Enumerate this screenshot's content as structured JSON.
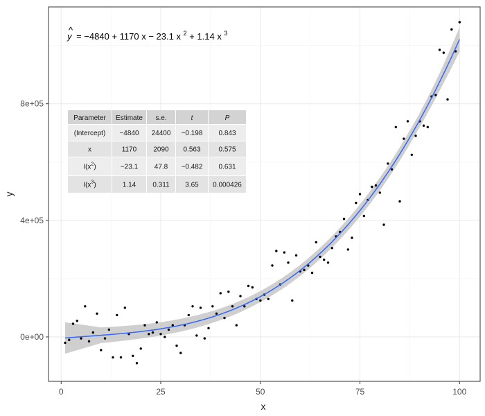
{
  "chart_data": {
    "type": "scatter",
    "title": "",
    "xlabel": "x",
    "ylabel": "y",
    "xlim": [
      -3,
      105
    ],
    "ylim": [
      -150000,
      1130000
    ],
    "x_ticks": [
      0,
      25,
      50,
      75,
      100
    ],
    "x_tick_labels": [
      "0",
      "25",
      "50",
      "75",
      "100"
    ],
    "y_ticks": [
      0,
      400000,
      800000
    ],
    "y_tick_labels": [
      "0e+00",
      "4e+05",
      "8e+05"
    ],
    "grid": true,
    "colors": {
      "points": "#000000",
      "fit_line": "#3366FF",
      "ribbon": "#bfbfbf",
      "grid": "#ebebeb",
      "panel_border": "#333333"
    },
    "equation": {
      "lhs": "y",
      "terms": "= −4840 + 1170 x − 23.1 x",
      "sq": "2",
      "mid": " + 1.14 x",
      "cube": "3"
    },
    "fit": {
      "method": "polynomial",
      "coefficients": [
        -4840,
        1170,
        -23.1,
        1.14
      ],
      "se_band": [
        {
          "x": 1,
          "half": 54000
        },
        {
          "x": 10,
          "half": 27000
        },
        {
          "x": 20,
          "half": 24000
        },
        {
          "x": 30,
          "half": 22000
        },
        {
          "x": 40,
          "half": 20000
        },
        {
          "x": 50,
          "half": 19000
        },
        {
          "x": 60,
          "half": 19000
        },
        {
          "x": 70,
          "half": 20000
        },
        {
          "x": 80,
          "half": 22000
        },
        {
          "x": 90,
          "half": 24000
        },
        {
          "x": 95,
          "half": 30000
        },
        {
          "x": 100,
          "half": 42000
        }
      ]
    },
    "table": {
      "headers": [
        "Parameter",
        "Estimate",
        "s.e.",
        "t",
        "P"
      ],
      "rows": [
        {
          "param": "(Intercept)",
          "param_sup": "",
          "estimate": "−4840",
          "se": "24400",
          "t": "−0.198",
          "p": "0.843"
        },
        {
          "param": "x",
          "param_sup": "",
          "estimate": "1170",
          "se": "2090",
          "t": "0.563",
          "p": "0.575"
        },
        {
          "param": "I(x",
          "param_sup": "2",
          "estimate": "−23.1",
          "se": "47.8",
          "t": "−0.482",
          "p": "0.631"
        },
        {
          "param": "I(x",
          "param_sup": "3",
          "estimate": "1.14",
          "se": "0.311",
          "t": "3.65",
          "p": "0.000426"
        }
      ]
    },
    "points": [
      [
        1,
        -20000
      ],
      [
        2,
        -10000
      ],
      [
        3,
        45000
      ],
      [
        4,
        55000
      ],
      [
        5,
        -5000
      ],
      [
        6,
        105000
      ],
      [
        7,
        -15000
      ],
      [
        8,
        15000
      ],
      [
        9,
        80000
      ],
      [
        10,
        -45000
      ],
      [
        11,
        -5000
      ],
      [
        12,
        25000
      ],
      [
        13,
        -70000
      ],
      [
        14,
        75000
      ],
      [
        15,
        -70000
      ],
      [
        16,
        100000
      ],
      [
        17,
        10000
      ],
      [
        18,
        -65000
      ],
      [
        19,
        -90000
      ],
      [
        20,
        -40000
      ],
      [
        21,
        40000
      ],
      [
        22,
        10000
      ],
      [
        23,
        15000
      ],
      [
        24,
        50000
      ],
      [
        25,
        10000
      ],
      [
        26,
        0
      ],
      [
        27,
        25000
      ],
      [
        28,
        40000
      ],
      [
        29,
        -30000
      ],
      [
        30,
        -55000
      ],
      [
        31,
        40000
      ],
      [
        32,
        75000
      ],
      [
        33,
        105000
      ],
      [
        34,
        5000
      ],
      [
        35,
        100000
      ],
      [
        36,
        -5000
      ],
      [
        37,
        30000
      ],
      [
        38,
        105000
      ],
      [
        39,
        80000
      ],
      [
        40,
        150000
      ],
      [
        41,
        65000
      ],
      [
        42,
        155000
      ],
      [
        43,
        105000
      ],
      [
        44,
        40000
      ],
      [
        45,
        140000
      ],
      [
        46,
        105000
      ],
      [
        47,
        175000
      ],
      [
        48,
        170000
      ],
      [
        49,
        130000
      ],
      [
        50,
        125000
      ],
      [
        51,
        145000
      ],
      [
        52,
        130000
      ],
      [
        53,
        245000
      ],
      [
        54,
        295000
      ],
      [
        55,
        180000
      ],
      [
        56,
        290000
      ],
      [
        57,
        255000
      ],
      [
        58,
        125000
      ],
      [
        59,
        280000
      ],
      [
        60,
        225000
      ],
      [
        61,
        230000
      ],
      [
        62,
        245000
      ],
      [
        63,
        220000
      ],
      [
        64,
        325000
      ],
      [
        65,
        275000
      ],
      [
        66,
        265000
      ],
      [
        67,
        255000
      ],
      [
        68,
        305000
      ],
      [
        69,
        345000
      ],
      [
        70,
        360000
      ],
      [
        71,
        405000
      ],
      [
        72,
        300000
      ],
      [
        73,
        340000
      ],
      [
        74,
        460000
      ],
      [
        75,
        490000
      ],
      [
        76,
        415000
      ],
      [
        77,
        470000
      ],
      [
        78,
        515000
      ],
      [
        79,
        520000
      ],
      [
        80,
        495000
      ],
      [
        81,
        385000
      ],
      [
        82,
        595000
      ],
      [
        83,
        575000
      ],
      [
        84,
        720000
      ],
      [
        85,
        465000
      ],
      [
        86,
        680000
      ],
      [
        87,
        740000
      ],
      [
        88,
        625000
      ],
      [
        89,
        690000
      ],
      [
        90,
        740000
      ],
      [
        91,
        725000
      ],
      [
        92,
        720000
      ],
      [
        93,
        825000
      ],
      [
        94,
        830000
      ],
      [
        95,
        985000
      ],
      [
        96,
        975000
      ],
      [
        97,
        815000
      ],
      [
        98,
        1055000
      ],
      [
        99,
        980000
      ],
      [
        100,
        1080000
      ]
    ]
  }
}
